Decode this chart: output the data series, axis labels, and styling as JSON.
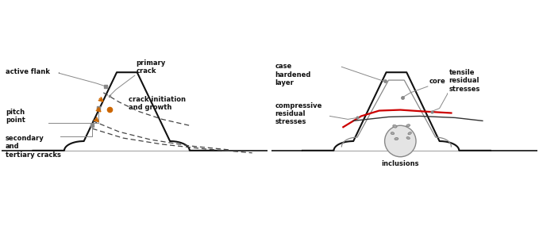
{
  "bg_color": "#ffffff",
  "tooth_color": "#111111",
  "gray_color": "#888888",
  "orange_color": "#CC6600",
  "red_color": "#CC0000",
  "dark_color": "#333333",
  "dashed_color": "#444444",
  "text_color": "#111111",
  "figsize": [
    6.79,
    2.85
  ],
  "dpi": 100,
  "left_labels": {
    "active_flank": "active flank",
    "pitch_point": "pitch\npoint",
    "primary_crack": "primary\ncrack",
    "crack_initiation": "crack initiation\nand growth",
    "secondary_cracks": "secondary\nand\ntertiary cracks"
  },
  "right_labels": {
    "case_hardened": "case\nhardened\nlayer",
    "core": "core",
    "compressive": "compressive\nresidual\nstresses",
    "tensile": "tensile\nresidual\nstresses",
    "inclusions": "inclusions"
  }
}
